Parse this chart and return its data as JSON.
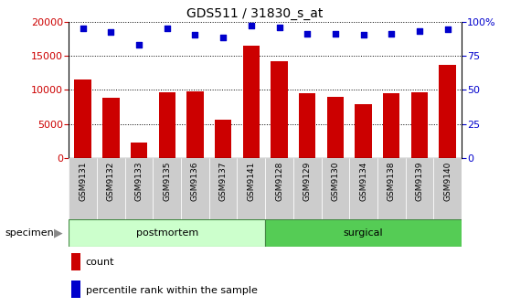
{
  "title": "GDS511 / 31830_s_at",
  "samples": [
    "GSM9131",
    "GSM9132",
    "GSM9133",
    "GSM9135",
    "GSM9136",
    "GSM9137",
    "GSM9141",
    "GSM9128",
    "GSM9129",
    "GSM9130",
    "GSM9134",
    "GSM9138",
    "GSM9139",
    "GSM9140"
  ],
  "counts": [
    11500,
    8900,
    2300,
    9600,
    9800,
    5600,
    16500,
    14200,
    9500,
    9000,
    7900,
    9500,
    9700,
    13700
  ],
  "percentiles": [
    95,
    92,
    83,
    95,
    90,
    88,
    97,
    96,
    91,
    91,
    90,
    91,
    93,
    94
  ],
  "bar_color": "#cc0000",
  "dot_color": "#0000cc",
  "ylim_left": [
    0,
    20000
  ],
  "ylim_right": [
    0,
    100
  ],
  "yticks_left": [
    0,
    5000,
    10000,
    15000,
    20000
  ],
  "yticks_right": [
    0,
    25,
    50,
    75,
    100
  ],
  "groups": [
    {
      "label": "postmortem",
      "start": 0,
      "end": 7,
      "color": "#ccffcc"
    },
    {
      "label": "surgical",
      "start": 7,
      "end": 14,
      "color": "#55cc55"
    }
  ],
  "legend_count_label": "count",
  "legend_pct_label": "percentile rank within the sample",
  "specimen_label": "specimen",
  "bg_color": "#ffffff",
  "grid_color": "#000000",
  "tick_color_left": "#cc0000",
  "tick_color_right": "#0000cc",
  "xticklabel_bg": "#cccccc"
}
